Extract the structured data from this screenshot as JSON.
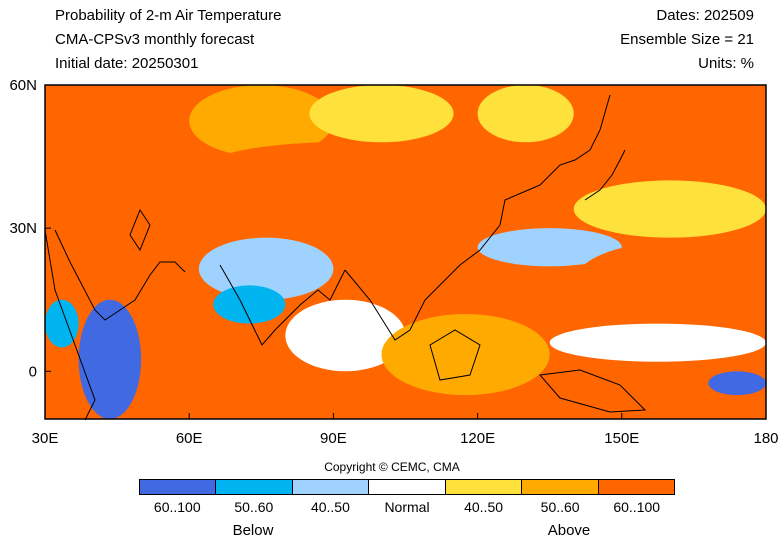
{
  "header": {
    "title_line1": "Probability of 2-m Air Temperature",
    "title_line2": "CMA-CPSv3 monthly forecast",
    "title_line3": "Initial date: 20250301",
    "dates": "Dates: 202509",
    "ensemble": "Ensemble Size = 21",
    "units": "Units: %"
  },
  "map": {
    "lon_ticks": [
      {
        "value": 30,
        "label": "30E"
      },
      {
        "value": 60,
        "label": "60E"
      },
      {
        "value": 90,
        "label": "90E"
      },
      {
        "value": 120,
        "label": "120E"
      },
      {
        "value": 150,
        "label": "150E"
      },
      {
        "value": 180,
        "label": "180"
      }
    ],
    "lat_ticks": [
      {
        "value": 60,
        "label": "60N"
      },
      {
        "value": 30,
        "label": "30N"
      },
      {
        "value": 0,
        "label": "0"
      }
    ],
    "lon_range": [
      30,
      180
    ],
    "lat_range": [
      -10,
      60
    ],
    "ocean_color": "#ff6600",
    "regions": [
      {
        "category": "above_60_100",
        "lon_min": 30,
        "lon_max": 60,
        "lat_min": 40,
        "lat_max": 60
      },
      {
        "category": "above_50_60",
        "lon_min": 60,
        "lon_max": 90,
        "lat_min": 45,
        "lat_max": 60
      },
      {
        "category": "above_40_50",
        "lon_min": 85,
        "lon_max": 115,
        "lat_min": 48,
        "lat_max": 60
      },
      {
        "category": "above_60_100",
        "lon_min": 60,
        "lon_max": 120,
        "lat_min": 33,
        "lat_max": 48
      },
      {
        "category": "above_60_100",
        "lon_min": 140,
        "lon_max": 180,
        "lat_min": 45,
        "lat_max": 60
      },
      {
        "category": "above_40_50",
        "lon_min": 120,
        "lon_max": 140,
        "lat_min": 48,
        "lat_max": 60
      },
      {
        "category": "above_60_100",
        "lon_min": 110,
        "lon_max": 140,
        "lat_min": 32,
        "lat_max": 45
      },
      {
        "category": "above_40_50",
        "lon_min": 140,
        "lon_max": 180,
        "lat_min": 28,
        "lat_max": 40
      },
      {
        "category": "above_60_100",
        "lon_min": 30,
        "lon_max": 55,
        "lat_min": 18,
        "lat_max": 35
      },
      {
        "category": "below_40_50",
        "lon_min": 62,
        "lon_max": 90,
        "lat_min": 15,
        "lat_max": 28
      },
      {
        "category": "below_50_60",
        "lon_min": 65,
        "lon_max": 80,
        "lat_min": 10,
        "lat_max": 18
      },
      {
        "category": "below_60_100",
        "lon_min": 37,
        "lon_max": 50,
        "lat_min": -10,
        "lat_max": 15
      },
      {
        "category": "below_50_60",
        "lon_min": 30,
        "lon_max": 37,
        "lat_min": 5,
        "lat_max": 15
      },
      {
        "category": "normal",
        "lon_min": 80,
        "lon_max": 105,
        "lat_min": 0,
        "lat_max": 15
      },
      {
        "category": "above_50_60",
        "lon_min": 100,
        "lon_max": 135,
        "lat_min": -5,
        "lat_max": 12
      },
      {
        "category": "below_40_50",
        "lon_min": 120,
        "lon_max": 150,
        "lat_min": 22,
        "lat_max": 30
      },
      {
        "category": "above_60_100",
        "lon_min": 140,
        "lon_max": 180,
        "lat_min": 10,
        "lat_max": 27
      },
      {
        "category": "normal",
        "lon_min": 135,
        "lon_max": 180,
        "lat_min": 2,
        "lat_max": 10
      },
      {
        "category": "below_60_100",
        "lon_min": 168,
        "lon_max": 180,
        "lat_min": -5,
        "lat_max": 0
      }
    ]
  },
  "copyright": "Copyright © CEMC, CMA",
  "legend": {
    "items": [
      {
        "label": "60..100",
        "color": "#4169e1"
      },
      {
        "label": "50..60",
        "color": "#00b4f0"
      },
      {
        "label": "40..50",
        "color": "#a0d2ff"
      },
      {
        "label": "Normal",
        "color": "#ffffff"
      },
      {
        "label": "40..50",
        "color": "#ffe13c"
      },
      {
        "label": "50..60",
        "color": "#ffaa00"
      },
      {
        "label": "60..100",
        "color": "#ff6600"
      }
    ],
    "below_label": "Below",
    "above_label": "Above"
  },
  "category_colors": {
    "below_60_100": "#4169e1",
    "below_50_60": "#00b4f0",
    "below_40_50": "#a0d2ff",
    "normal": "#ffffff",
    "above_40_50": "#ffe13c",
    "above_50_60": "#ffaa00",
    "above_60_100": "#ff6600"
  }
}
